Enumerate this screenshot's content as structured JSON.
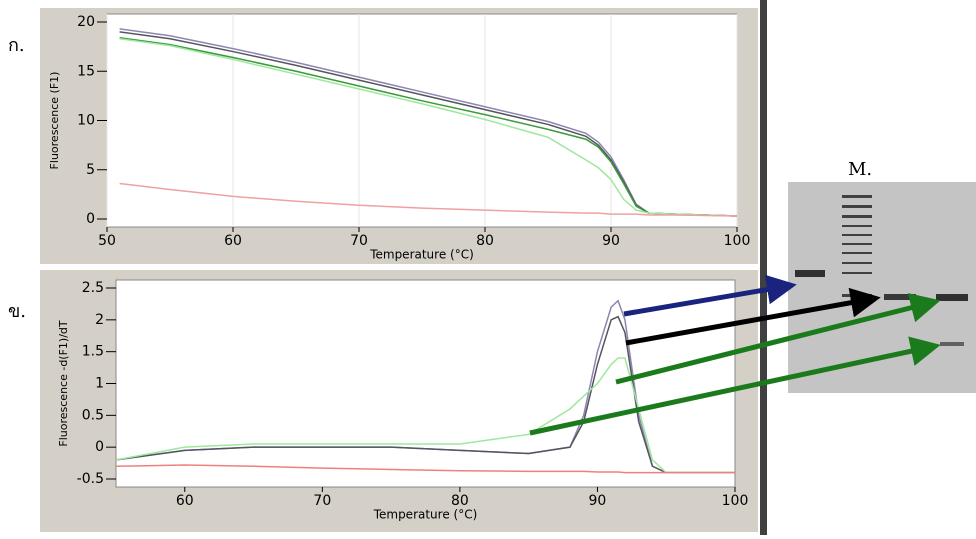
{
  "chart_data": [
    {
      "type": "line",
      "x_label": "Temperature (°C)",
      "y_label": "Fluorescence (F1)",
      "x": [
        51,
        55,
        60,
        65,
        70,
        75,
        80,
        85,
        88,
        89,
        90,
        91,
        92,
        93,
        95,
        100
      ],
      "xlim": [
        50,
        100
      ],
      "xticks": [
        50,
        60,
        70,
        80,
        90,
        100
      ],
      "ylim": [
        0,
        20
      ],
      "yticks": [
        0,
        5,
        10,
        15,
        20
      ],
      "grid": true,
      "series": [
        {
          "color": "#8e86b0",
          "values": [
            19.3,
            18.6,
            17.3,
            15.9,
            14.4,
            12.9,
            11.4,
            9.9,
            8.7,
            7.8,
            6.3,
            4.0,
            1.5,
            0.6,
            0.5,
            0.3
          ]
        },
        {
          "color": "#555560",
          "values": [
            19.0,
            18.3,
            17.0,
            15.6,
            14.1,
            12.6,
            11.1,
            9.6,
            8.4,
            7.5,
            6.0,
            3.8,
            1.4,
            0.6,
            0.5,
            0.3
          ]
        },
        {
          "color": "#3a9a3a",
          "values": [
            18.4,
            17.7,
            16.4,
            15.0,
            13.5,
            12.0,
            10.6,
            9.1,
            8.1,
            7.3,
            5.8,
            3.6,
            1.3,
            0.6,
            0.5,
            0.3
          ]
        },
        {
          "color": "#9ee89e",
          "values": [
            18.3,
            17.6,
            16.2,
            14.7,
            13.2,
            11.7,
            10.1,
            8.3,
            6.0,
            5.2,
            4.0,
            2.0,
            0.9,
            0.6,
            0.5,
            0.3
          ]
        },
        {
          "color": "#f0a0a0",
          "values": [
            3.6,
            3.0,
            2.3,
            1.8,
            1.4,
            1.1,
            0.9,
            0.7,
            0.6,
            0.6,
            0.5,
            0.5,
            0.5,
            0.4,
            0.4,
            0.3
          ]
        }
      ]
    },
    {
      "type": "line",
      "x_label": "Temperature (°C)",
      "y_label": "Fluorescence -d(F1)/dT",
      "x": [
        55,
        60,
        65,
        70,
        75,
        80,
        85,
        88,
        89,
        90,
        91,
        91.5,
        92,
        93,
        94,
        95,
        100
      ],
      "xlim": [
        55,
        100
      ],
      "xticks": [
        60,
        70,
        80,
        90,
        100
      ],
      "ylim": [
        -0.5,
        2.5
      ],
      "yticks": [
        -0.5,
        0,
        0.5,
        1,
        1.5,
        2,
        2.5
      ],
      "grid": false,
      "series": [
        {
          "color": "#8e86b0",
          "values": [
            -0.2,
            -0.05,
            0,
            0,
            0,
            -0.05,
            -0.1,
            0,
            0.5,
            1.5,
            2.2,
            2.3,
            2.0,
            0.5,
            -0.3,
            -0.4,
            -0.4
          ]
        },
        {
          "color": "#555560",
          "values": [
            -0.2,
            -0.05,
            0,
            0,
            0,
            -0.05,
            -0.1,
            0,
            0.4,
            1.3,
            2.0,
            2.05,
            1.8,
            0.4,
            -0.3,
            -0.4,
            -0.4
          ]
        },
        {
          "color": "#9ee89e",
          "values": [
            -0.2,
            0,
            0.05,
            0.05,
            0.05,
            0.05,
            0.2,
            0.6,
            0.8,
            1.0,
            1.3,
            1.4,
            1.4,
            0.6,
            -0.2,
            -0.4,
            -0.4
          ]
        },
        {
          "color": "#f08080",
          "values": [
            -0.3,
            -0.28,
            -0.3,
            -0.33,
            -0.35,
            -0.37,
            -0.38,
            -0.38,
            -0.38,
            -0.39,
            -0.39,
            -0.39,
            -0.4,
            -0.4,
            -0.4,
            -0.4,
            -0.4
          ]
        }
      ]
    }
  ],
  "panel_labels": [
    "ก.",
    "ข."
  ],
  "gel_lane_label": "M."
}
